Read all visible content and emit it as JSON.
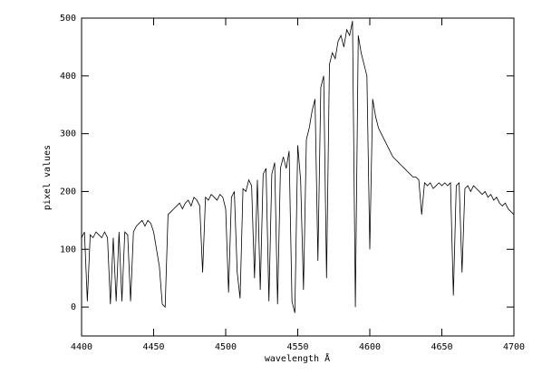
{
  "chart_data": {
    "type": "line",
    "x_label": "wavelength Å",
    "y_label": "pixel values",
    "xlim": [
      4400,
      4700
    ],
    "xticks": [
      4400,
      4450,
      4500,
      4550,
      4600,
      4650,
      4700
    ],
    "ylim": [
      -50,
      500
    ],
    "yticks": [
      0,
      100,
      200,
      300,
      400,
      500
    ],
    "x": [
      4400,
      4402,
      4404,
      4406,
      4408,
      4410,
      4412,
      4414,
      4416,
      4418,
      4420,
      4422,
      4424,
      4426,
      4428,
      4430,
      4432,
      4434,
      4436,
      4438,
      4440,
      4442,
      4444,
      4446,
      4448,
      4450,
      4452,
      4454,
      4456,
      4458,
      4460,
      4462,
      4464,
      4466,
      4468,
      4470,
      4472,
      4474,
      4476,
      4478,
      4480,
      4482,
      4484,
      4486,
      4488,
      4490,
      4492,
      4494,
      4496,
      4498,
      4500,
      4502,
      4504,
      4506,
      4508,
      4510,
      4512,
      4514,
      4516,
      4518,
      4520,
      4522,
      4524,
      4526,
      4528,
      4530,
      4532,
      4534,
      4536,
      4538,
      4540,
      4542,
      4544,
      4546,
      4548,
      4550,
      4552,
      4554,
      4556,
      4558,
      4560,
      4562,
      4564,
      4566,
      4568,
      4570,
      4572,
      4574,
      4576,
      4578,
      4580,
      4582,
      4584,
      4586,
      4588,
      4590,
      4592,
      4594,
      4596,
      4598,
      4600,
      4602,
      4604,
      4606,
      4608,
      4610,
      4612,
      4614,
      4616,
      4618,
      4620,
      4622,
      4624,
      4626,
      4628,
      4630,
      4632,
      4634,
      4636,
      4638,
      4640,
      4642,
      4644,
      4646,
      4648,
      4650,
      4652,
      4654,
      4656,
      4658,
      4660,
      4662,
      4664,
      4666,
      4668,
      4670,
      4672,
      4674,
      4676,
      4678,
      4680,
      4682,
      4684,
      4686,
      4688,
      4690,
      4692,
      4694,
      4696,
      4698,
      4700
    ],
    "series": [
      {
        "color": "#000000",
        "values": [
          120,
          130,
          10,
          125,
          120,
          130,
          125,
          120,
          130,
          120,
          5,
          120,
          10,
          130,
          10,
          130,
          125,
          10,
          130,
          140,
          145,
          150,
          140,
          150,
          145,
          130,
          100,
          70,
          5,
          0,
          160,
          165,
          170,
          175,
          180,
          170,
          180,
          185,
          175,
          190,
          185,
          175,
          60,
          190,
          185,
          195,
          190,
          185,
          195,
          190,
          170,
          25,
          190,
          200,
          60,
          15,
          205,
          200,
          220,
          210,
          50,
          220,
          30,
          230,
          240,
          10,
          230,
          250,
          5,
          240,
          260,
          240,
          270,
          10,
          -10,
          280,
          220,
          30,
          290,
          310,
          340,
          360,
          80,
          380,
          400,
          50,
          420,
          440,
          430,
          460,
          470,
          450,
          480,
          470,
          495,
          0,
          470,
          440,
          420,
          400,
          100,
          360,
          330,
          310,
          300,
          290,
          280,
          270,
          260,
          255,
          250,
          245,
          240,
          235,
          230,
          225,
          225,
          220,
          160,
          215,
          210,
          215,
          205,
          210,
          215,
          210,
          215,
          210,
          215,
          20,
          210,
          215,
          60,
          205,
          210,
          200,
          210,
          205,
          200,
          195,
          200,
          190,
          195,
          185,
          190,
          180,
          175,
          180,
          170,
          165,
          160
        ]
      }
    ]
  }
}
